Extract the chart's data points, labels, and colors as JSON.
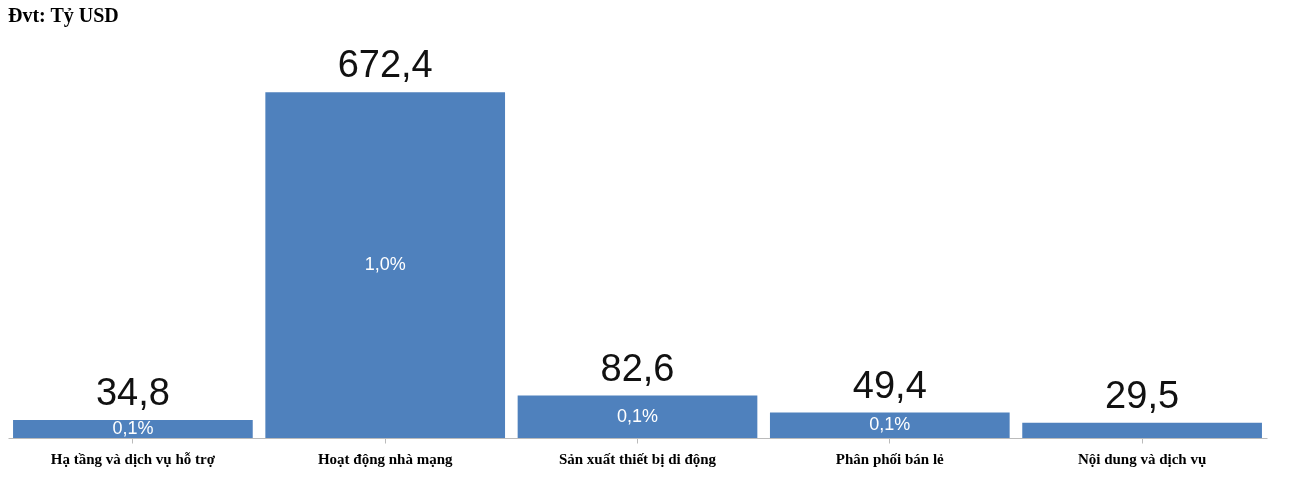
{
  "chart_data": {
    "type": "bar",
    "title": "Đvt: Tỷ USD",
    "categories": [
      "Hạ tầng và dịch vụ hỗ trợ",
      "Hoạt động nhà mạng",
      "Sản xuất thiết bị di động",
      "Phân phối bán lẻ",
      "Nội dung và dịch vụ"
    ],
    "values": [
      34.8,
      672.4,
      82.6,
      49.4,
      29.5
    ],
    "value_labels": [
      "34,8",
      "672,4",
      "82,6",
      "49,4",
      "29,5"
    ],
    "color": "#4f81bd",
    "grid": false,
    "annotations": [
      "0,1%",
      "1,0%",
      "0,1%",
      "0,1%"
    ]
  }
}
